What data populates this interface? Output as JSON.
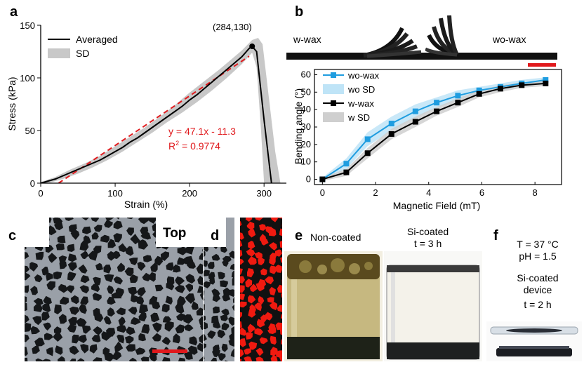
{
  "panels": {
    "a": "a",
    "b": "b",
    "c": "c",
    "d": "d",
    "e": "e",
    "f": "f"
  },
  "chart_a": {
    "type": "line",
    "xlabel": "Strain (%)",
    "ylabel": "Stress (kPa)",
    "xlim": [
      0,
      330
    ],
    "ylim": [
      0,
      150
    ],
    "xticks": [
      "0",
      "100",
      "200",
      "300"
    ],
    "yticks": [
      "0",
      "50",
      "100",
      "150"
    ],
    "legend": [
      "Averaged",
      "SD"
    ],
    "peak_label": "(284,130)",
    "peak": [
      284,
      130
    ],
    "fit_equation": "y = 47.1x - 11.3",
    "r2_prefix": "R",
    "r2_sup": "2",
    "r2_value": " = 0.9774",
    "colors": {
      "averaged": "#000000",
      "sd": "#c8c8c8",
      "fit": "#e0191c"
    },
    "averaged": [
      [
        0,
        0
      ],
      [
        10,
        2
      ],
      [
        20,
        4
      ],
      [
        30,
        7
      ],
      [
        40,
        10
      ],
      [
        50,
        13
      ],
      [
        60,
        16
      ],
      [
        70,
        19
      ],
      [
        80,
        22
      ],
      [
        90,
        26
      ],
      [
        100,
        30
      ],
      [
        110,
        34
      ],
      [
        120,
        39
      ],
      [
        130,
        43
      ],
      [
        140,
        48
      ],
      [
        150,
        53
      ],
      [
        160,
        58
      ],
      [
        170,
        63
      ],
      [
        180,
        68
      ],
      [
        190,
        73
      ],
      [
        200,
        79
      ],
      [
        210,
        84
      ],
      [
        220,
        90
      ],
      [
        230,
        96
      ],
      [
        240,
        102
      ],
      [
        250,
        108
      ],
      [
        260,
        114
      ],
      [
        270,
        120
      ],
      [
        280,
        128
      ],
      [
        284,
        130
      ],
      [
        290,
        125
      ],
      [
        300,
        60
      ],
      [
        310,
        0
      ]
    ],
    "sd_upper": [
      [
        0,
        1
      ],
      [
        20,
        6
      ],
      [
        40,
        13
      ],
      [
        60,
        19
      ],
      [
        80,
        26
      ],
      [
        100,
        35
      ],
      [
        120,
        44
      ],
      [
        140,
        53
      ],
      [
        160,
        63
      ],
      [
        180,
        74
      ],
      [
        200,
        86
      ],
      [
        220,
        97
      ],
      [
        240,
        108
      ],
      [
        255,
        117
      ],
      [
        270,
        126
      ],
      [
        284,
        136
      ],
      [
        292,
        138
      ],
      [
        298,
        132
      ],
      [
        305,
        90
      ],
      [
        315,
        30
      ],
      [
        322,
        0
      ]
    ],
    "sd_lower": [
      [
        300,
        0
      ],
      [
        296,
        50
      ],
      [
        290,
        110
      ],
      [
        284,
        124
      ],
      [
        270,
        113
      ],
      [
        250,
        100
      ],
      [
        230,
        88
      ],
      [
        210,
        77
      ],
      [
        190,
        67
      ],
      [
        170,
        58
      ],
      [
        150,
        48
      ],
      [
        130,
        39
      ],
      [
        110,
        30
      ],
      [
        90,
        22
      ],
      [
        70,
        15
      ],
      [
        50,
        9
      ],
      [
        30,
        4
      ],
      [
        10,
        0
      ],
      [
        0,
        0
      ]
    ],
    "fit_x": [
      24,
      280
    ]
  },
  "chart_b": {
    "type": "line",
    "xlabel": "Magnetic Field (mT)",
    "ylabel": "Bending angle (°)",
    "xlim": [
      -0.3,
      9
    ],
    "ylim": [
      -3,
      63
    ],
    "xticks": [
      "0",
      "2",
      "4",
      "6",
      "8"
    ],
    "yticks": [
      "0",
      "10",
      "20",
      "30",
      "40",
      "50",
      "60"
    ],
    "photo_labels": [
      "w-wax",
      "wo-wax"
    ],
    "legend": [
      "wo-wax",
      "wo SD",
      "w-wax",
      "w SD"
    ],
    "colors": {
      "wo": "#1f9de0",
      "wo_sd": "#bfe4f7",
      "w": "#000000",
      "w_sd": "#cfcfcf",
      "scalebar": "#e0191c"
    },
    "series": [
      {
        "name": "wo-wax",
        "x": [
          0,
          0.9,
          1.7,
          2.6,
          3.5,
          4.3,
          5.1,
          5.9,
          6.7,
          7.5,
          8.4
        ],
        "y": [
          0,
          9,
          23,
          32,
          39,
          44,
          48,
          51,
          53,
          55,
          57
        ],
        "sd": [
          1,
          3,
          4,
          4,
          4,
          3,
          3,
          2,
          2,
          2,
          1.5
        ]
      },
      {
        "name": "w-wax",
        "x": [
          0,
          0.9,
          1.7,
          2.6,
          3.5,
          4.3,
          5.1,
          5.9,
          6.7,
          7.5,
          8.4
        ],
        "y": [
          0,
          4,
          15,
          26,
          33,
          39,
          44,
          49,
          52,
          54,
          55
        ],
        "sd": [
          1,
          2,
          3,
          3,
          3,
          2.5,
          2.5,
          2,
          2,
          1.5,
          1.5
        ]
      }
    ]
  },
  "panel_c": {
    "label": "Top"
  },
  "panel_e": {
    "left_label": "Non-coated",
    "right_label_1": "Si-coated",
    "right_label_2": "t = 3 h"
  },
  "panel_f": {
    "line1": "T = 37 °C",
    "line2": "pH = 1.5",
    "line3": "Si-coated",
    "line4": "device",
    "line5": "t = 2 h"
  }
}
